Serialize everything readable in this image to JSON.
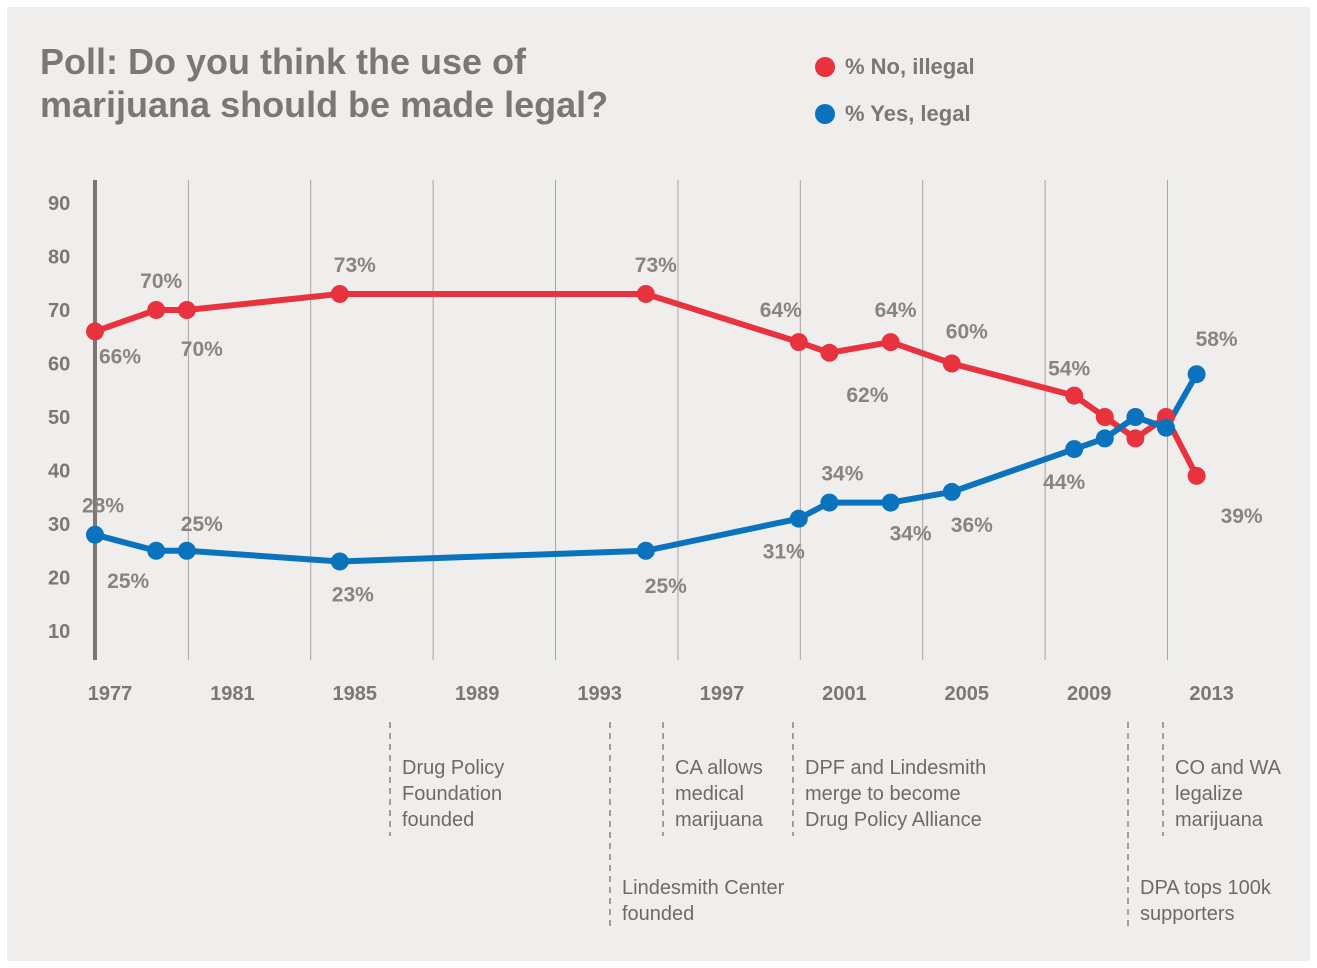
{
  "chart_data": {
    "type": "line",
    "title": "Poll: Do you think the use of marijuana should be made legal?",
    "xlabel": "",
    "ylabel": "",
    "xlim": [
      1977,
      2013.6
    ],
    "ylim": [
      5,
      95
    ],
    "yticks": [
      10,
      20,
      30,
      40,
      50,
      60,
      70,
      80,
      90
    ],
    "xticks": [
      1977,
      1981,
      1985,
      1989,
      1993,
      1997,
      2001,
      2005,
      2009,
      2013
    ],
    "grid": true,
    "legend_position": "top-right",
    "series": [
      {
        "name": "% No, illegal",
        "color": "#e8333e",
        "x": [
          1977,
          1979,
          1980,
          1985,
          1995,
          2000,
          2001,
          2003,
          2005,
          2009,
          2010,
          2011,
          2012,
          2013
        ],
        "values": [
          66,
          70,
          70,
          73,
          73,
          64,
          62,
          64,
          60,
          54,
          50,
          46,
          50,
          39
        ],
        "labels": [
          "66%",
          "70%",
          "70%",
          "73%",
          "73%",
          "64%",
          "62%",
          "64%",
          "60%",
          "54%",
          "",
          "",
          "",
          "39%"
        ]
      },
      {
        "name": "% Yes, legal",
        "color": "#0b73bd",
        "x": [
          1977,
          1979,
          1980,
          1985,
          1995,
          2000,
          2001,
          2003,
          2005,
          2009,
          2010,
          2011,
          2012,
          2013
        ],
        "values": [
          28,
          25,
          25,
          23,
          25,
          31,
          34,
          34,
          36,
          44,
          46,
          50,
          48,
          58
        ],
        "labels": [
          "28%",
          "25%",
          "25%",
          "23%",
          "25%",
          "31%",
          "34%",
          "34%",
          "36%",
          "44%",
          "",
          "",
          "",
          "58%"
        ]
      }
    ],
    "annotations": [
      {
        "text": "Drug Policy Foundation founded",
        "x": 1987,
        "lines": [
          "Drug Policy",
          "Foundation",
          "founded"
        ],
        "row": "upper"
      },
      {
        "text": "Lindesmith Center founded",
        "x": 1994,
        "lines": [
          "Lindesmith Center",
          "founded"
        ],
        "row": "lower"
      },
      {
        "text": "CA allows medical marijuana",
        "x": 1996,
        "lines": [
          "CA allows",
          "medical",
          "marijuana"
        ],
        "row": "upper"
      },
      {
        "text": "DPF and Lindesmith merge to become Drug Policy Alliance",
        "x": 2000,
        "lines": [
          "DPF and Lindesmith",
          "merge to become",
          "Drug Policy Alliance"
        ],
        "row": "upper"
      },
      {
        "text": "DPA tops 100k supporters",
        "x": 2010,
        "lines": [
          "DPA tops 100k",
          "supporters"
        ],
        "row": "lower"
      },
      {
        "text": "CO and WA legalize marijuana",
        "x": 2012,
        "lines": [
          "CO and WA",
          "legalize",
          "marijuana"
        ],
        "row": "upper"
      }
    ]
  }
}
